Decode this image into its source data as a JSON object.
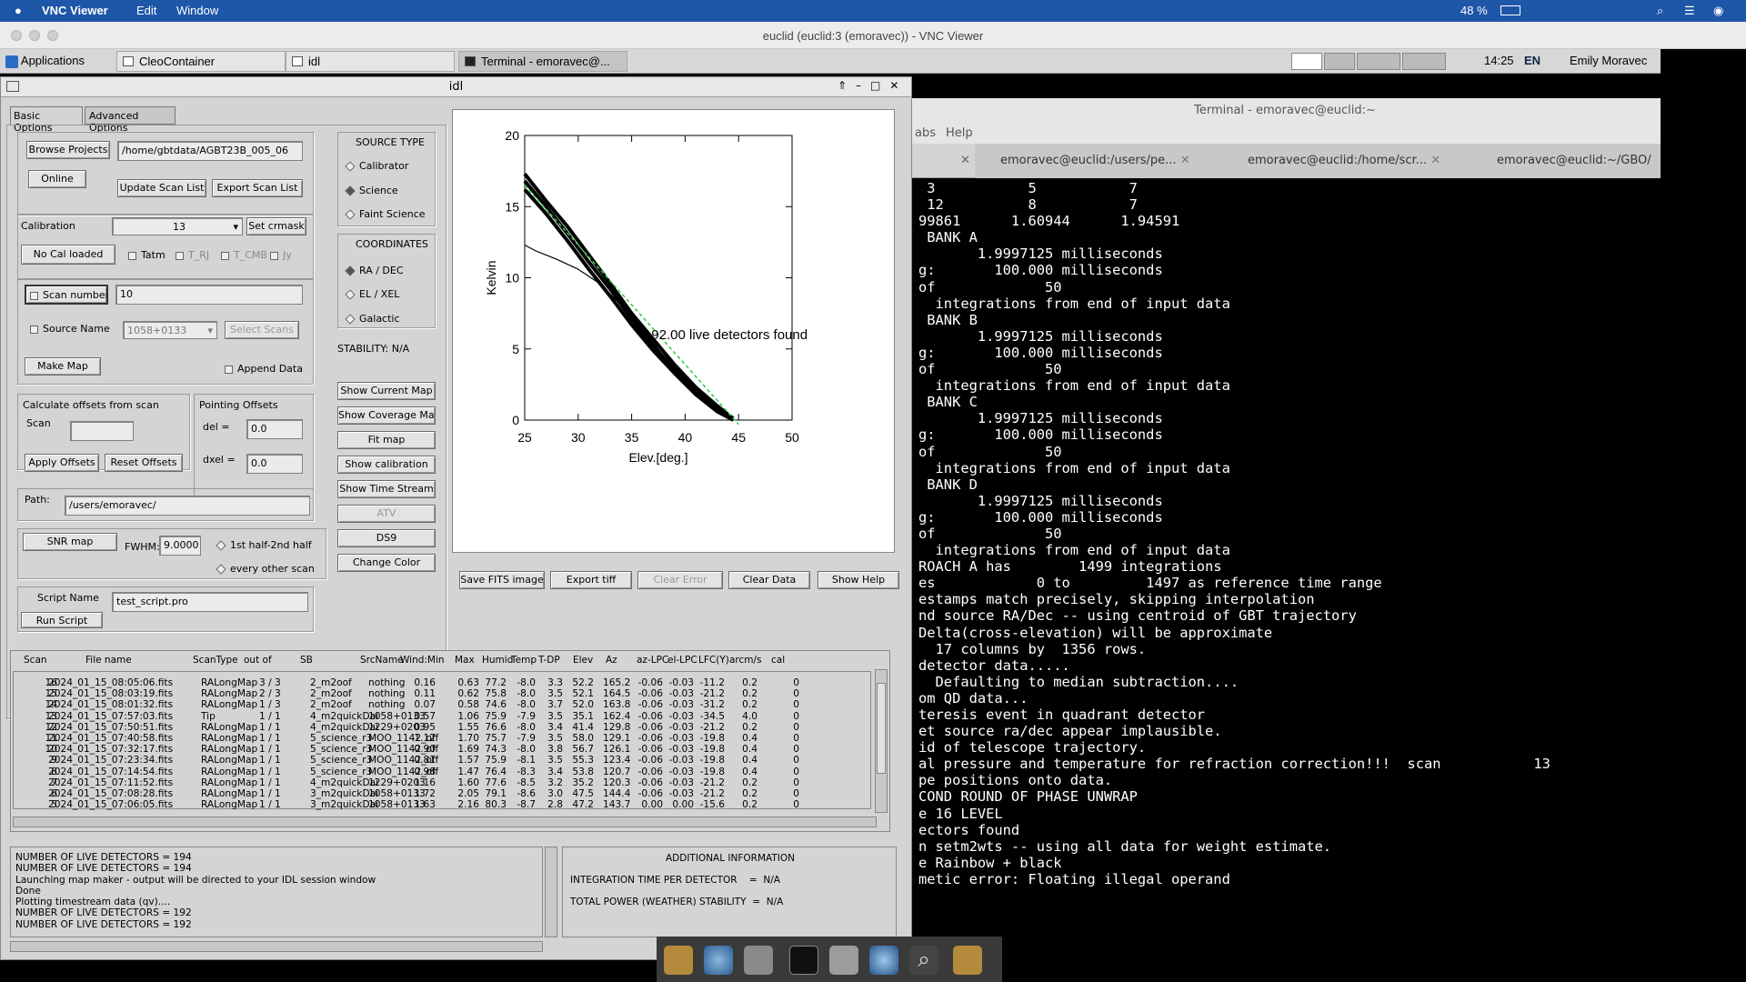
{
  "macbar": {
    "app": "VNC Viewer",
    "menus": [
      "Edit",
      "Window"
    ],
    "battery": "48 %"
  },
  "vnc": {
    "title": "euclid (euclid:3 (emoravec)) - VNC Viewer"
  },
  "panel": {
    "applications": "Applications",
    "tasks": [
      "CleoContainer",
      "idl",
      "Terminal - emoravec@..."
    ],
    "clock": "14:25",
    "lang": "EN",
    "user": "Emily Moravec"
  },
  "terminal": {
    "title": "Terminal - emoravec@euclid:~",
    "menu_partial": "abs",
    "menu_help": "Help",
    "tabs": [
      "emoravec@euclid:/users/pe...",
      "emoravec@euclid:/home/scr...",
      "emoravec@euclid:~/GBO/"
    ],
    "lines": [
      " 3           5           7",
      " 12          8           7",
      "",
      "",
      "99861      1.60944      1.94591",
      " BANK A",
      "       1.9997125 milliseconds",
      "g:       100.000 milliseconds",
      "of             50",
      "  integrations from end of input data",
      " BANK B",
      "       1.9997125 milliseconds",
      "g:       100.000 milliseconds",
      "of             50",
      "  integrations from end of input data",
      " BANK C",
      "       1.9997125 milliseconds",
      "g:       100.000 milliseconds",
      "of             50",
      "  integrations from end of input data",
      " BANK D",
      "       1.9997125 milliseconds",
      "g:       100.000 milliseconds",
      "of             50",
      "  integrations from end of input data",
      "ROACH A has        1499 integrations",
      "es            0 to         1497 as reference time range",
      "estamps match precisely, skipping interpolation",
      "nd source RA/Dec -- using centroid of GBT trajectory",
      "Delta(cross-elevation) will be approximate",
      "  17 columns by  1356 rows.",
      "detector data.....",
      "  Defaulting to median subtraction....",
      "om QD data...",
      "teresis event in quadrant detector",
      "et source ra/dec appear implausible.",
      "id of telescope trajectory.",
      "al pressure and temperature for refraction correction!!!  scan           13",
      "pe positions onto data.",
      "COND ROUND OF PHASE UNWRAP",
      "e 16 LEVEL",
      "ectors found",
      "n setm2wts -- using all data for weight estimate.",
      "e Rainbow + black",
      "metic error: Floating illegal operand"
    ]
  },
  "idl": {
    "title": "idl",
    "tabs": [
      "Basic Options",
      "Advanced Options"
    ],
    "browse": "Browse Projects",
    "project_path": "/home/gbtdata/AGBT23B_005_06",
    "online": "Online",
    "update_scan": "Update Scan List",
    "export_scan": "Export Scan List",
    "calibration_label": "Calibration",
    "calibration_value": "13",
    "set_crmask": "Set crmask",
    "no_cal": "No Cal loaded",
    "cal_checks": [
      "Tatm",
      "T_RJ",
      "T_CMB",
      "Jy"
    ],
    "scan_numbers": "Scan numbers",
    "scan_numbers_value": "10",
    "source_name": "Source Name",
    "source_value": "1058+0133",
    "select_scans": "Select Scans",
    "make_map": "Make Map",
    "append": "Append Data",
    "calc_offsets": "Calculate offsets from scan",
    "scan_label": "Scan",
    "scan_value": "",
    "pointing_offsets": "Pointing Offsets",
    "del_label": "del  =",
    "del_value": "0.0",
    "dxel_label": "dxel =",
    "dxel_value": "0.0",
    "apply_offsets": "Apply Offsets",
    "reset_offsets": "Reset Offsets",
    "path_label": "Path:",
    "path_value": "/users/emoravec/",
    "snr_map": "SNR map",
    "fwhm_label": "FWHM:",
    "fwhm_value": "9.0000",
    "half1": "1st half-2nd half",
    "half2": "every other scan",
    "script_name_label": "Script Name",
    "script_value": "test_script.pro",
    "run_script": "Run Script",
    "source_type": "SOURCE TYPE",
    "source_types": [
      "Calibrator",
      "Science",
      "Faint Science"
    ],
    "coordinates": "COORDINATES",
    "coords": [
      "RA / DEC",
      "EL / XEL",
      "Galactic"
    ],
    "stability": "STABILITY: N/A",
    "side_buttons": [
      "Show Current Map",
      "Show Coverage Map",
      "Fit map",
      "Show calibration",
      "Show Time Stream",
      "ATV",
      "DS9",
      "Change Color"
    ],
    "plot_buttons": [
      "Save FITS image",
      "Export tiff",
      "Clear Error",
      "Clear Data",
      "Show Help"
    ],
    "table_headers": [
      "Scan",
      "File name",
      "ScanType",
      "out of",
      "SB",
      "SrcName",
      "Wind:Min",
      "Max",
      "Humid",
      "Temp",
      "T-DP",
      "Elev",
      "Az",
      "az-LPC",
      "el-LPC",
      "LFC(Y)",
      "arcm/s",
      "cal"
    ],
    "rows": [
      [
        "16",
        "2024_01_15_08:05:06.fits",
        "RALongMap",
        "3 / 3",
        "2_m2oof",
        "nothing",
        "0.16",
        "0.63",
        "77.2",
        "-8.0",
        "3.3",
        "52.2",
        "165.2",
        "-0.06",
        "-0.03",
        "-11.2",
        "0.2",
        "0"
      ],
      [
        "15",
        "2024_01_15_08:03:19.fits",
        "RALongMap",
        "2 / 3",
        "2_m2oof",
        "nothing",
        "0.11",
        "0.62",
        "75.8",
        "-8.0",
        "3.5",
        "52.1",
        "164.5",
        "-0.06",
        "-0.03",
        "-21.2",
        "0.2",
        "0"
      ],
      [
        "14",
        "2024_01_15_08:01:32.fits",
        "RALongMap",
        "1 / 3",
        "2_m2oof",
        "nothing",
        "0.07",
        "0.58",
        "74.6",
        "-8.0",
        "3.7",
        "52.0",
        "163.8",
        "-0.06",
        "-0.03",
        "-31.2",
        "0.2",
        "0"
      ],
      [
        "13",
        "2024_01_15_07:57:03.fits",
        "Tip",
        "1 / 1",
        "4_m2quickDai",
        "1058+0133",
        "0.57",
        "1.06",
        "75.9",
        "-7.9",
        "3.5",
        "35.1",
        "162.4",
        "-0.06",
        "-0.03",
        "-34.5",
        "4.0",
        "0"
      ],
      [
        "12",
        "2024_01_15_07:50:51.fits",
        "RALongMap",
        "1 / 1",
        "4_m2quickDai",
        "1229+0203",
        "0.95",
        "1.55",
        "76.6",
        "-8.0",
        "3.4",
        "41.4",
        "129.8",
        "-0.06",
        "-0.03",
        "-21.2",
        "0.2",
        "0"
      ],
      [
        "11",
        "2024_01_15_07:40:58.fits",
        "RALongMap",
        "1 / 1",
        "5_science_r3",
        "MOO_1142_off",
        "1.12",
        "1.70",
        "75.7",
        "-7.9",
        "3.5",
        "58.0",
        "129.1",
        "-0.06",
        "-0.03",
        "-19.8",
        "0.4",
        "0"
      ],
      [
        "10",
        "2024_01_15_07:32:17.fits",
        "RALongMap",
        "1 / 1",
        "5_science_r3",
        "MOO_1142_off",
        "0.90",
        "1.69",
        "74.3",
        "-8.0",
        "3.8",
        "56.7",
        "126.1",
        "-0.06",
        "-0.03",
        "-19.8",
        "0.4",
        "0"
      ],
      [
        "9",
        "2024_01_15_07:23:34.fits",
        "RALongMap",
        "1 / 1",
        "5_science_r3",
        "MOO_1142_off",
        "0.81",
        "1.57",
        "75.9",
        "-8.1",
        "3.5",
        "55.3",
        "123.4",
        "-0.06",
        "-0.03",
        "-19.8",
        "0.4",
        "0"
      ],
      [
        "8",
        "2024_01_15_07:14:54.fits",
        "RALongMap",
        "1 / 1",
        "5_science_r3",
        "MOO_1142_off",
        "0.98",
        "1.47",
        "76.4",
        "-8.3",
        "3.4",
        "53.8",
        "120.7",
        "-0.06",
        "-0.03",
        "-19.8",
        "0.4",
        "0"
      ],
      [
        "7",
        "2024_01_15_07:11:52.fits",
        "RALongMap",
        "1 / 1",
        "4_m2quickDai",
        "1229+0203",
        "1.16",
        "1.60",
        "77.6",
        "-8.5",
        "3.2",
        "35.2",
        "120.3",
        "-0.06",
        "-0.03",
        "-21.2",
        "0.2",
        "0"
      ],
      [
        "6",
        "2024_01_15_07:08:28.fits",
        "RALongMap",
        "1 / 1",
        "3_m2quickDai",
        "1058+0133",
        "1.72",
        "2.05",
        "79.1",
        "-8.6",
        "3.0",
        "47.5",
        "144.4",
        "-0.06",
        "-0.03",
        "-21.2",
        "0.2",
        "0"
      ],
      [
        "5",
        "2024_01_15_07:06:05.fits",
        "RALongMap",
        "1 / 1",
        "3_m2quickDai",
        "1058+0133",
        "1.63",
        "2.16",
        "80.3",
        "-8.7",
        "2.8",
        "47.2",
        "143.7",
        "0.00",
        "0.00",
        "-15.6",
        "0.2",
        "0"
      ]
    ],
    "log": "NUMBER OF LIVE DETECTORS = 194\nNUMBER OF LIVE DETECTORS = 194\nLaunching map maker - output will be directed to your IDL session window\nDone\nPlotting timestream data (qv)....\nNUMBER OF LIVE DETECTORS = 192\nNUMBER OF LIVE DETECTORS = 192",
    "info_title": "ADDITIONAL INFORMATION",
    "info_line1": "INTEGRATION TIME PER DETECTOR    =  N/A",
    "info_line2": "TOTAL POWER (WEATHER) STABILITY  =  N/A"
  },
  "chart_data": {
    "type": "line",
    "xlabel": "Elev.[deg.]",
    "ylabel": "Kelvin",
    "xlim": [
      25,
      50
    ],
    "ylim": [
      0,
      20
    ],
    "xticks": [
      25,
      30,
      35,
      40,
      45,
      50
    ],
    "yticks": [
      0,
      5,
      10,
      15,
      20
    ],
    "annotation": "192.00 live detectors found",
    "series": [
      {
        "x": [
          25,
          27,
          29,
          31,
          33,
          35,
          37,
          39,
          41,
          43,
          44.5
        ],
        "y": [
          17.3,
          15.4,
          13.6,
          11.6,
          9.6,
          7.5,
          5.7,
          3.9,
          2.3,
          1.0,
          0.1
        ]
      },
      {
        "x": [
          25,
          27,
          29,
          31,
          33,
          35,
          37,
          39,
          41,
          43,
          44.5
        ],
        "y": [
          16.8,
          15.0,
          13.1,
          11.1,
          9.2,
          7.1,
          5.2,
          3.6,
          2.0,
          0.8,
          0.0
        ]
      },
      {
        "x": [
          25,
          27,
          29,
          31,
          33,
          35,
          37,
          39,
          41,
          43,
          44.5
        ],
        "y": [
          16.2,
          14.5,
          12.6,
          10.6,
          8.7,
          6.7,
          4.9,
          3.3,
          1.8,
          0.6,
          0.0
        ]
      },
      {
        "x": [
          25,
          26,
          28,
          30,
          32,
          34,
          36,
          38,
          40,
          42,
          44.5
        ],
        "y": [
          12.3,
          11.9,
          11.3,
          10.6,
          9.6,
          8.1,
          6.4,
          4.5,
          2.7,
          1.2,
          0.0
        ]
      }
    ],
    "fit": {
      "x": [
        25,
        45
      ],
      "y": [
        16.5,
        -0.3
      ]
    }
  }
}
